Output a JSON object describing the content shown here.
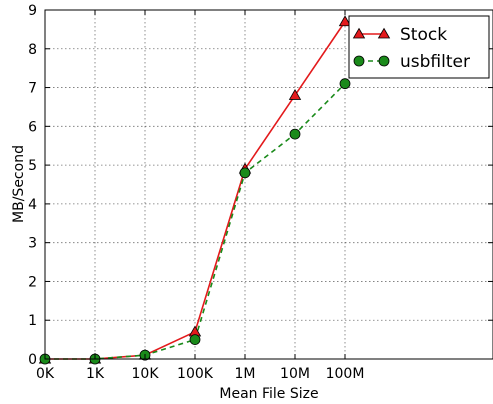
{
  "chart_data": {
    "type": "line",
    "title": "",
    "xlabel": "Mean File Size",
    "ylabel": "MB/Second",
    "categories": [
      "0K",
      "1K",
      "10K",
      "100K",
      "1M",
      "10M",
      "100M"
    ],
    "ylim": [
      0,
      9
    ],
    "yticks": [
      "0",
      "1",
      "2",
      "3",
      "4",
      "5",
      "6",
      "7",
      "8",
      "9"
    ],
    "grid": true,
    "legend_position": "top-right",
    "series": [
      {
        "name": "Stock",
        "values": [
          0,
          0,
          0.1,
          0.7,
          4.9,
          6.8,
          8.7
        ],
        "color": "#e31a1c",
        "marker": "triangle",
        "line": "solid"
      },
      {
        "name": "usbfilter",
        "values": [
          0,
          0,
          0.1,
          0.5,
          4.8,
          5.8,
          7.1
        ],
        "color": "#1a8a1a",
        "marker": "circle",
        "line": "dashed"
      }
    ]
  }
}
